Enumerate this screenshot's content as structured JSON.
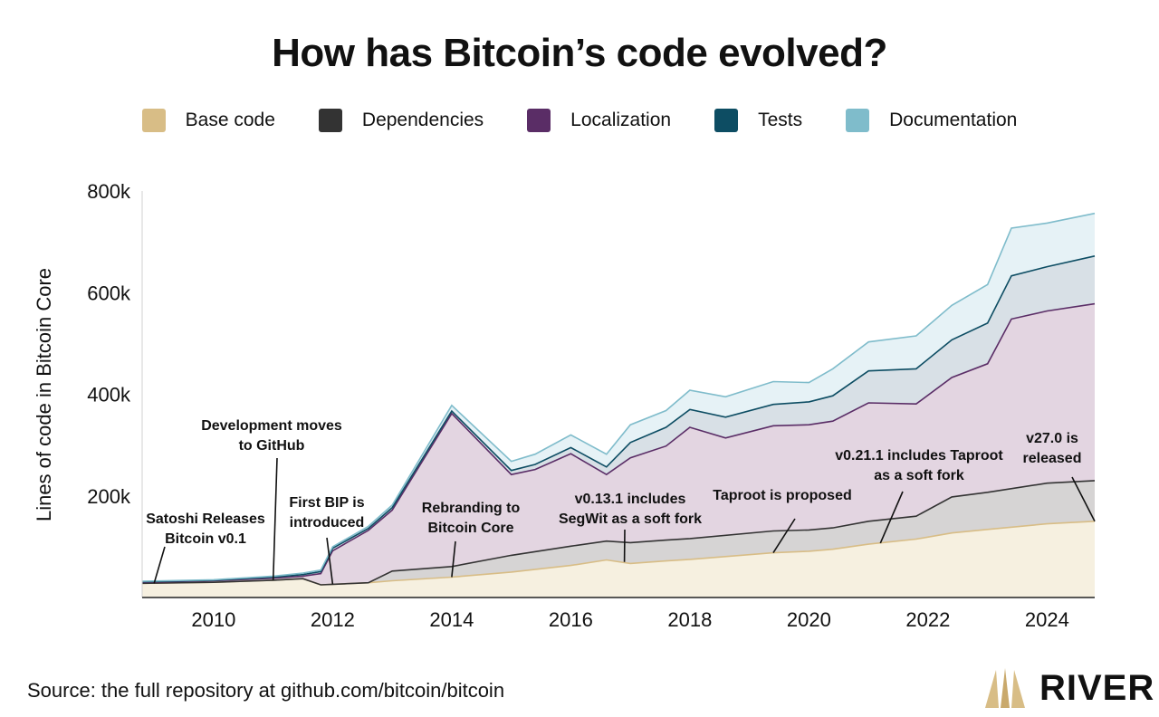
{
  "title": "How has Bitcoin’s code evolved?",
  "source": "Source: the full repository at github.com/bitcoin/bitcoin",
  "logo": {
    "text": "RIVER",
    "icon": "river-mountain-icon"
  },
  "chart_data": {
    "type": "area",
    "stacked": true,
    "ylabel": "Lines of code in Bitcoin Core",
    "xlabel": "",
    "xlim": [
      2008.8,
      2024.8
    ],
    "ylim": [
      0,
      800000
    ],
    "yticks": [
      {
        "value": 200000,
        "label": "200k"
      },
      {
        "value": 400000,
        "label": "400k"
      },
      {
        "value": 600000,
        "label": "600k"
      },
      {
        "value": 800000,
        "label": "800k"
      }
    ],
    "xticks": [
      {
        "value": 2010,
        "label": "2010"
      },
      {
        "value": 2012,
        "label": "2012"
      },
      {
        "value": 2014,
        "label": "2014"
      },
      {
        "value": 2016,
        "label": "2016"
      },
      {
        "value": 2018,
        "label": "2018"
      },
      {
        "value": 2020,
        "label": "2020"
      },
      {
        "value": 2022,
        "label": "2022"
      },
      {
        "value": 2024,
        "label": "2024"
      }
    ],
    "series": [
      {
        "name": "Base code",
        "color": "#d8bd86",
        "fill": "#f6f0e0",
        "points": [
          [
            2008.8,
            28000
          ],
          [
            2010,
            30000
          ],
          [
            2011,
            34000
          ],
          [
            2011.5,
            37000
          ],
          [
            2011.8,
            25000
          ],
          [
            2012,
            26000
          ],
          [
            2012.6,
            29000
          ],
          [
            2013,
            33000
          ],
          [
            2014,
            40000
          ],
          [
            2015,
            50000
          ],
          [
            2016,
            63000
          ],
          [
            2016.6,
            74000
          ],
          [
            2017,
            67000
          ],
          [
            2017.6,
            72000
          ],
          [
            2018,
            75000
          ],
          [
            2019.4,
            88000
          ],
          [
            2020,
            91000
          ],
          [
            2020.4,
            95000
          ],
          [
            2021,
            105000
          ],
          [
            2021.8,
            115000
          ],
          [
            2022.4,
            127000
          ],
          [
            2023,
            134000
          ],
          [
            2024,
            145000
          ],
          [
            2024.8,
            150000
          ]
        ]
      },
      {
        "name": "Dependencies",
        "color": "#333333",
        "fill": "#d6d4d4",
        "points": [
          [
            2008.8,
            28000
          ],
          [
            2010,
            30000
          ],
          [
            2011,
            34000
          ],
          [
            2011.5,
            37000
          ],
          [
            2011.8,
            25000
          ],
          [
            2012,
            26000
          ],
          [
            2012.6,
            29000
          ],
          [
            2013,
            52000
          ],
          [
            2014,
            61000
          ],
          [
            2015,
            83000
          ],
          [
            2016,
            101000
          ],
          [
            2016.6,
            111000
          ],
          [
            2017,
            108000
          ],
          [
            2017.6,
            113000
          ],
          [
            2018,
            116000
          ],
          [
            2019.4,
            131000
          ],
          [
            2020,
            133000
          ],
          [
            2020.4,
            137000
          ],
          [
            2021,
            150000
          ],
          [
            2021.8,
            160000
          ],
          [
            2022.4,
            198000
          ],
          [
            2023,
            207000
          ],
          [
            2024,
            225000
          ],
          [
            2024.8,
            230000
          ]
        ]
      },
      {
        "name": "Localization",
        "color": "#5a2d66",
        "fill": "#e3d5e1",
        "points": [
          [
            2008.8,
            30000
          ],
          [
            2010,
            33000
          ],
          [
            2011,
            38000
          ],
          [
            2011.5,
            42000
          ],
          [
            2011.8,
            47000
          ],
          [
            2012,
            92000
          ],
          [
            2012.6,
            132000
          ],
          [
            2013,
            172000
          ],
          [
            2014,
            362000
          ],
          [
            2015,
            242000
          ],
          [
            2015.4,
            252000
          ],
          [
            2016,
            283000
          ],
          [
            2016.6,
            242000
          ],
          [
            2017,
            275000
          ],
          [
            2017.6,
            298000
          ],
          [
            2018,
            335000
          ],
          [
            2018.6,
            314000
          ],
          [
            2019.4,
            338000
          ],
          [
            2020,
            340000
          ],
          [
            2020.4,
            347000
          ],
          [
            2021,
            383000
          ],
          [
            2021.8,
            381000
          ],
          [
            2022.4,
            433000
          ],
          [
            2023,
            460000
          ],
          [
            2023.4,
            548000
          ],
          [
            2024,
            564000
          ],
          [
            2024.8,
            578000
          ]
        ]
      },
      {
        "name": "Tests",
        "color": "#0d4d63",
        "fill": "#d8e0e6",
        "points": [
          [
            2008.8,
            31000
          ],
          [
            2010,
            34000
          ],
          [
            2011,
            40000
          ],
          [
            2011.5,
            45000
          ],
          [
            2011.8,
            51000
          ],
          [
            2012,
            97000
          ],
          [
            2012.6,
            136000
          ],
          [
            2013,
            177000
          ],
          [
            2014,
            367000
          ],
          [
            2015,
            250000
          ],
          [
            2015.4,
            262000
          ],
          [
            2016,
            295000
          ],
          [
            2016.6,
            257000
          ],
          [
            2017,
            305000
          ],
          [
            2017.6,
            335000
          ],
          [
            2018,
            370000
          ],
          [
            2018.6,
            355000
          ],
          [
            2019.4,
            380000
          ],
          [
            2020,
            385000
          ],
          [
            2020.4,
            397000
          ],
          [
            2021,
            446000
          ],
          [
            2021.8,
            450000
          ],
          [
            2022.4,
            507000
          ],
          [
            2023,
            540000
          ],
          [
            2023.4,
            633000
          ],
          [
            2024,
            651000
          ],
          [
            2024.8,
            672000
          ]
        ]
      },
      {
        "name": "Documentation",
        "color": "#7fbccb",
        "fill": "#e6f2f6",
        "points": [
          [
            2008.8,
            32000
          ],
          [
            2010,
            35000
          ],
          [
            2011,
            42000
          ],
          [
            2011.5,
            48000
          ],
          [
            2011.8,
            54000
          ],
          [
            2012,
            100000
          ],
          [
            2012.6,
            140000
          ],
          [
            2013,
            182000
          ],
          [
            2014,
            378000
          ],
          [
            2015,
            268000
          ],
          [
            2015.4,
            282000
          ],
          [
            2016,
            320000
          ],
          [
            2016.6,
            282000
          ],
          [
            2017,
            340000
          ],
          [
            2017.6,
            368000
          ],
          [
            2018,
            408000
          ],
          [
            2018.6,
            395000
          ],
          [
            2019.4,
            425000
          ],
          [
            2020,
            423000
          ],
          [
            2020.4,
            450000
          ],
          [
            2021,
            503000
          ],
          [
            2021.8,
            515000
          ],
          [
            2022.4,
            575000
          ],
          [
            2023,
            616000
          ],
          [
            2023.4,
            727000
          ],
          [
            2024,
            737000
          ],
          [
            2024.8,
            756000
          ]
        ]
      }
    ],
    "annotations": [
      {
        "text": [
          "Satoshi Releases",
          "Bitcoin v0.1"
        ],
        "x": 2009.0,
        "y": 28000
      },
      {
        "text": [
          "Development moves",
          "to GitHub"
        ],
        "x": 2011.0,
        "y": 34000
      },
      {
        "text": [
          "First BIP is",
          "introduced"
        ],
        "x": 2012.0,
        "y": 26000
      },
      {
        "text": [
          "Rebranding to",
          "Bitcoin Core"
        ],
        "x": 2014.0,
        "y": 40000
      },
      {
        "text": [
          "v0.13.1 includes",
          "SegWit as a soft fork"
        ],
        "x": 2016.9,
        "y": 70000
      },
      {
        "text": [
          "Taproot is proposed"
        ],
        "x": 2019.4,
        "y": 88000
      },
      {
        "text": [
          "v0.21.1 includes Taproot",
          "as a soft fork"
        ],
        "x": 2021.2,
        "y": 107000
      },
      {
        "text": [
          "v27.0 is",
          "released"
        ],
        "x": 2024.8,
        "y": 150000
      }
    ]
  }
}
